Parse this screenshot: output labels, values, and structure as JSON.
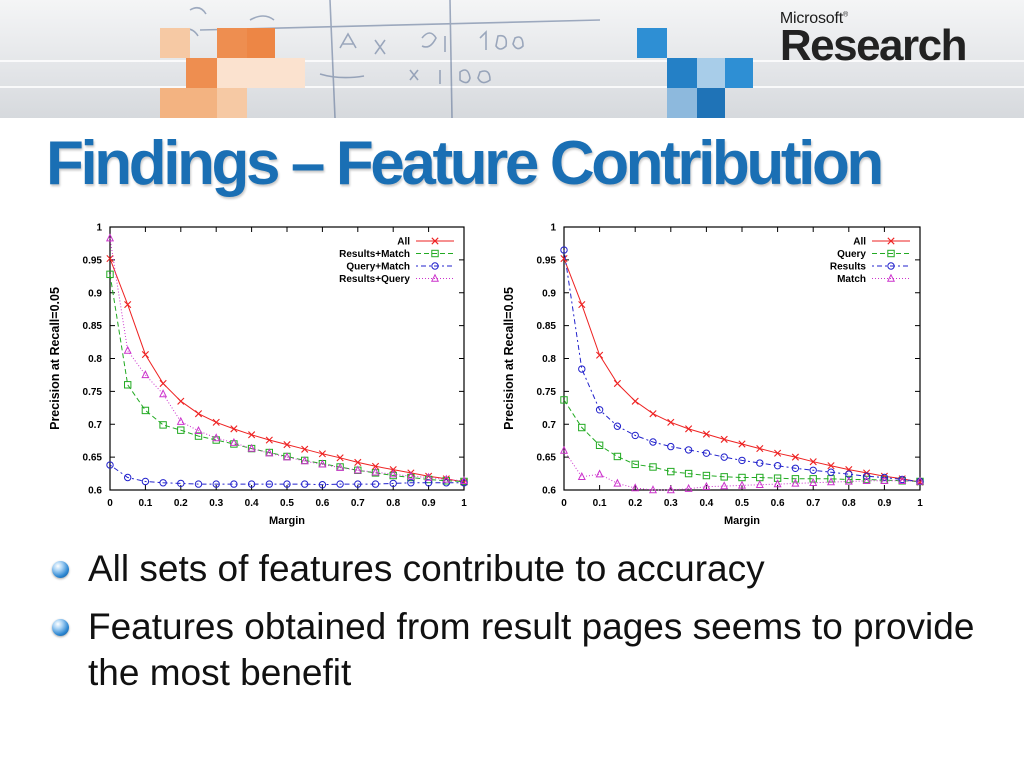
{
  "slide": {
    "title": "Findings – Feature Contribution",
    "logo": {
      "company": "Microsoft",
      "division": "Research"
    },
    "bullets": [
      "All sets of features contribute to accuracy",
      "Features obtained from result pages seems to provide the most benefit"
    ]
  },
  "colors": {
    "title": "#1a6fb4",
    "series": [
      "#ee2222",
      "#22aa22",
      "#2222cc",
      "#cc33cc"
    ]
  },
  "chart_data": [
    {
      "type": "line",
      "xlabel": "Margin",
      "ylabel": "Precision at Recall=0.05",
      "xlim": [
        0,
        1
      ],
      "ylim": [
        0.6,
        1
      ],
      "xticks": [
        0,
        0.1,
        0.2,
        0.3,
        0.4,
        0.5,
        0.6,
        0.7,
        0.8,
        0.9,
        1
      ],
      "xtick_labels": [
        "0",
        "0.1",
        "0.2",
        "0.3",
        "0.4",
        "0.5",
        "0.6",
        "0.7",
        "0.8",
        "0.9",
        "1"
      ],
      "yticks": [
        0.6,
        0.65,
        0.7,
        0.75,
        0.8,
        0.85,
        0.9,
        0.95,
        1
      ],
      "ytick_labels": [
        "0.6",
        "0.65",
        "0.7",
        "0.75",
        "0.8",
        "0.85",
        "0.9",
        "0.95",
        "1"
      ],
      "legend": "top-right",
      "x": [
        0,
        0.05,
        0.1,
        0.15,
        0.2,
        0.25,
        0.3,
        0.35,
        0.4,
        0.45,
        0.5,
        0.55,
        0.6,
        0.65,
        0.7,
        0.75,
        0.8,
        0.85,
        0.9,
        0.95,
        1
      ],
      "series": [
        {
          "name": "All",
          "marker": "x",
          "dash": "",
          "values": [
            0.952,
            0.882,
            0.806,
            0.762,
            0.735,
            0.716,
            0.703,
            0.693,
            0.684,
            0.676,
            0.669,
            0.662,
            0.655,
            0.649,
            0.642,
            0.636,
            0.631,
            0.626,
            0.621,
            0.617,
            0.612
          ]
        },
        {
          "name": "Results+Match",
          "marker": "square",
          "dash": "5,3",
          "values": [
            0.928,
            0.76,
            0.721,
            0.699,
            0.691,
            0.682,
            0.676,
            0.67,
            0.663,
            0.657,
            0.651,
            0.645,
            0.64,
            0.635,
            0.63,
            0.626,
            0.622,
            0.619,
            0.616,
            0.614,
            0.613
          ]
        },
        {
          "name": "Query+Match",
          "marker": "circle",
          "dash": "2,3,5,3",
          "values": [
            0.638,
            0.619,
            0.613,
            0.611,
            0.61,
            0.609,
            0.609,
            0.609,
            0.609,
            0.609,
            0.609,
            0.609,
            0.608,
            0.609,
            0.609,
            0.609,
            0.61,
            0.611,
            0.611,
            0.611,
            0.611
          ]
        },
        {
          "name": "Results+Query",
          "marker": "triangle",
          "dash": "1,2",
          "values": [
            0.983,
            0.812,
            0.775,
            0.746,
            0.704,
            0.69,
            0.679,
            0.672,
            0.663,
            0.656,
            0.65,
            0.644,
            0.639,
            0.634,
            0.63,
            0.627,
            0.624,
            0.621,
            0.619,
            0.616,
            0.614
          ]
        }
      ]
    },
    {
      "type": "line",
      "xlabel": "Margin",
      "ylabel": "Precision at Recall=0.05",
      "xlim": [
        0,
        1
      ],
      "ylim": [
        0.6,
        1
      ],
      "xticks": [
        0,
        0.1,
        0.2,
        0.3,
        0.4,
        0.5,
        0.6,
        0.7,
        0.8,
        0.9,
        1
      ],
      "xtick_labels": [
        "0",
        "0.1",
        "0.2",
        "0.3",
        "0.4",
        "0.5",
        "0.6",
        "0.7",
        "0.8",
        "0.9",
        "1"
      ],
      "yticks": [
        0.6,
        0.65,
        0.7,
        0.75,
        0.8,
        0.85,
        0.9,
        0.95,
        1
      ],
      "ytick_labels": [
        "0.6",
        "0.65",
        "0.7",
        "0.75",
        "0.8",
        "0.85",
        "0.9",
        "0.95",
        "1"
      ],
      "legend": "top-right",
      "x": [
        0,
        0.05,
        0.1,
        0.15,
        0.2,
        0.25,
        0.3,
        0.35,
        0.4,
        0.45,
        0.5,
        0.55,
        0.6,
        0.65,
        0.7,
        0.75,
        0.8,
        0.85,
        0.9,
        0.95,
        1
      ],
      "series": [
        {
          "name": "All",
          "marker": "x",
          "dash": "",
          "values": [
            0.952,
            0.882,
            0.805,
            0.762,
            0.735,
            0.716,
            0.703,
            0.693,
            0.685,
            0.677,
            0.67,
            0.663,
            0.656,
            0.65,
            0.643,
            0.637,
            0.631,
            0.626,
            0.621,
            0.617,
            0.612
          ]
        },
        {
          "name": "Query",
          "marker": "square",
          "dash": "5,3",
          "values": [
            0.737,
            0.695,
            0.668,
            0.651,
            0.639,
            0.635,
            0.628,
            0.625,
            0.622,
            0.62,
            0.619,
            0.619,
            0.618,
            0.617,
            0.617,
            0.617,
            0.616,
            0.616,
            0.615,
            0.614,
            0.613
          ]
        },
        {
          "name": "Results",
          "marker": "circle",
          "dash": "2,3,5,3",
          "values": [
            0.965,
            0.784,
            0.722,
            0.697,
            0.683,
            0.673,
            0.666,
            0.661,
            0.656,
            0.65,
            0.645,
            0.641,
            0.637,
            0.633,
            0.63,
            0.627,
            0.624,
            0.621,
            0.619,
            0.616,
            0.613
          ]
        },
        {
          "name": "Match",
          "marker": "triangle",
          "dash": "1,2",
          "values": [
            0.66,
            0.62,
            0.624,
            0.61,
            0.603,
            0.6,
            0.6,
            0.602,
            0.605,
            0.606,
            0.607,
            0.608,
            0.609,
            0.61,
            0.611,
            0.612,
            0.613,
            0.614,
            0.614,
            0.614,
            0.613
          ]
        }
      ]
    }
  ]
}
